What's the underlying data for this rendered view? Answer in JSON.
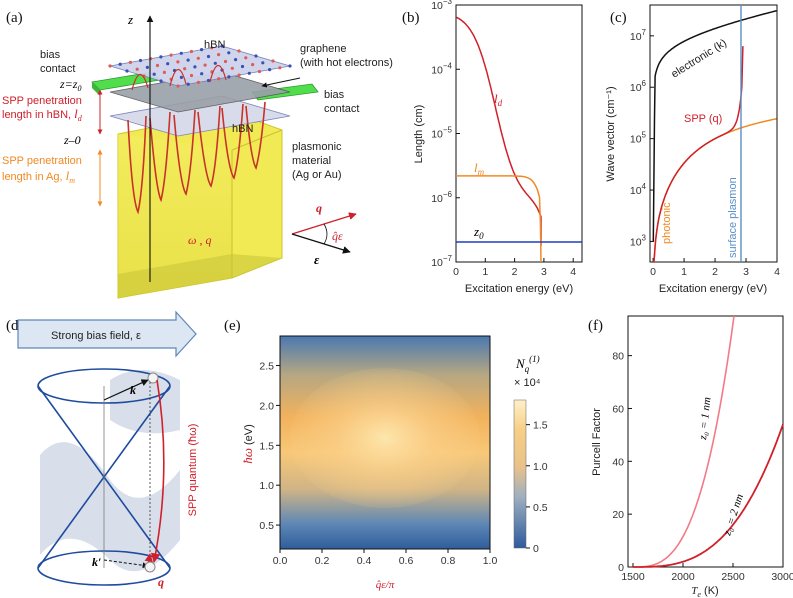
{
  "panels": {
    "a": {
      "tag": "(a)",
      "z_axis": "z",
      "hbn_top": "hBN",
      "hbn_bottom": "hBN",
      "graphene": "graphene",
      "graphene_sub": "(with hot electrons)",
      "bias_contact_left_1": "bias",
      "bias_contact_left_2": "contact",
      "bias_contact_right_1": "bias",
      "bias_contact_right_2": "contact",
      "z_z0": "z=z",
      "z_z0_sub": "0",
      "z_0": "z–0",
      "spp_hbn_1": "SPP penetration",
      "spp_hbn_2": "length in hBN,",
      "spp_hbn_sym": "l",
      "spp_hbn_sub": "d",
      "spp_ag_1": "SPP penetration",
      "spp_ag_2": "length in Ag,",
      "spp_ag_sym": "l",
      "spp_ag_sub": "m",
      "plasmonic_1": "plasmonic",
      "plasmonic_2": "material",
      "plasmonic_3": "(Ag or Au)",
      "omega_q": "ω , q",
      "vec_q": "q",
      "vec_qE": "q̂ε",
      "vec_E": "ε"
    },
    "b": {
      "tag": "(b)",
      "ylabel": "Length (cm)",
      "xlabel": "Excitation energy (eV)",
      "x_ticks": [
        "0",
        "1",
        "2",
        "3",
        "4"
      ],
      "y_ticks": [
        "10",
        "10",
        "10",
        "10",
        "10"
      ],
      "y_exps": [
        "−3",
        "−4",
        "−5",
        "−6",
        "−7"
      ],
      "curve_ld": "l",
      "curve_ld_sub": "d",
      "curve_lm": "l",
      "curve_lm_sub": "m",
      "curve_z0": "z",
      "curve_z0_sub": "0"
    },
    "c": {
      "tag": "(c)",
      "ylabel": "Wave vector (cm⁻¹)",
      "xlabel": "Excitation energy (eV)",
      "x_ticks": [
        "0",
        "1",
        "2",
        "3",
        "4"
      ],
      "y_ticks": [
        "10",
        "10",
        "10",
        "10",
        "10"
      ],
      "y_exps": [
        "7",
        "6",
        "5",
        "4",
        "3"
      ],
      "electronic": "electronic (k)",
      "spp": "SPP (q)",
      "photonic": "photonic",
      "surface_plasmon": "surface plasmon"
    },
    "d": {
      "tag": "(d)",
      "bias_field": "Strong bias field, ε",
      "k": "k",
      "k_prime": "k′",
      "q": "q",
      "spp_quantum": "SPP quantum (ħω)"
    },
    "e": {
      "tag": "(e)",
      "ylabel": "ħω",
      "ylabel_unit": "(eV)",
      "xlabel": "q̂ε/π",
      "x_ticks": [
        "0.0",
        "0.2",
        "0.4",
        "0.6",
        "0.8",
        "1.0"
      ],
      "y_ticks": [
        "2.5",
        "2.0",
        "1.5",
        "1.0",
        "0.5"
      ],
      "cbar_title": "N",
      "cbar_title_sub": "q",
      "cbar_title_sup": "(1)",
      "cbar_scale": "× 10⁴",
      "cbar_ticks": [
        "1.5",
        "1.0",
        "0.5",
        "0"
      ]
    },
    "f": {
      "tag": "(f)",
      "ylabel": "Purcell Factor",
      "xlabel": "T",
      "xlabel_sub": "e",
      "xlabel_unit": " (K)",
      "x_ticks": [
        "1500",
        "2000",
        "2500",
        "3000"
      ],
      "y_ticks": [
        "80",
        "60",
        "40",
        "20",
        "0"
      ],
      "curve_1nm": "z₀ = 1 nm",
      "curve_2nm": "z₀ = 2 nm"
    }
  },
  "colors": {
    "red": "#d0202a",
    "orange": "#f08a24",
    "blue": "#1f3fc4",
    "steel": "#5a8fc8",
    "pink": "#f27a86",
    "green": "#45d64a",
    "yellow": "#f2e84a"
  }
}
